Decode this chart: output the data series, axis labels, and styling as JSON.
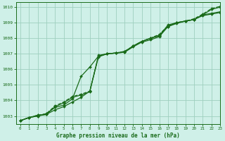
{
  "xlabel": "Graphe pression niveau de la mer (hPa)",
  "background_color": "#cff0e8",
  "grid_color": "#9ecfbf",
  "line_color": "#1a6b1a",
  "xlim": [
    -0.5,
    23
  ],
  "ylim": [
    1002.5,
    1010.3
  ],
  "yticks": [
    1003,
    1004,
    1005,
    1006,
    1007,
    1008,
    1009,
    1010
  ],
  "xticks": [
    0,
    1,
    2,
    3,
    4,
    5,
    6,
    7,
    8,
    9,
    10,
    11,
    12,
    13,
    14,
    15,
    16,
    17,
    18,
    19,
    20,
    21,
    22,
    23
  ],
  "series": [
    [
      1002.7,
      1002.9,
      1003.0,
      1003.1,
      1003.4,
      1003.6,
      1003.9,
      1004.2,
      1004.6,
      1006.8,
      1007.0,
      1007.05,
      1007.1,
      1007.45,
      1007.75,
      1007.9,
      1008.1,
      1008.75,
      1008.95,
      1009.1,
      1009.2,
      1009.45,
      1009.55,
      1009.65
    ],
    [
      1002.7,
      1002.9,
      1003.0,
      1003.15,
      1003.55,
      1003.7,
      1004.1,
      1005.55,
      1006.15,
      1006.85,
      1007.0,
      1007.05,
      1007.15,
      1007.5,
      1007.8,
      1008.0,
      1008.15,
      1008.85,
      1009.0,
      1009.1,
      1009.2,
      1009.5,
      1009.6,
      1009.7
    ],
    [
      1002.7,
      1002.9,
      1003.05,
      1003.1,
      1003.6,
      1003.85,
      1004.2,
      1004.35,
      1004.55,
      1006.9,
      1007.0,
      1007.05,
      1007.1,
      1007.5,
      1007.8,
      1008.0,
      1008.2,
      1008.75,
      1009.0,
      1009.1,
      1009.2,
      1009.5,
      1009.85,
      1010.0
    ],
    [
      1002.7,
      1002.9,
      1003.05,
      1003.15,
      1003.65,
      1003.9,
      1004.25,
      1004.4,
      1004.6,
      1006.85,
      1007.0,
      1007.05,
      1007.15,
      1007.5,
      1007.8,
      1008.0,
      1008.25,
      1008.8,
      1009.0,
      1009.1,
      1009.25,
      1009.55,
      1009.9,
      1010.05
    ]
  ],
  "linestyles": [
    "-",
    "-",
    "-",
    "--"
  ],
  "linewidths": [
    0.9,
    0.9,
    0.9,
    0.9
  ],
  "markersizes": [
    2.0,
    2.0,
    2.0,
    2.0
  ]
}
